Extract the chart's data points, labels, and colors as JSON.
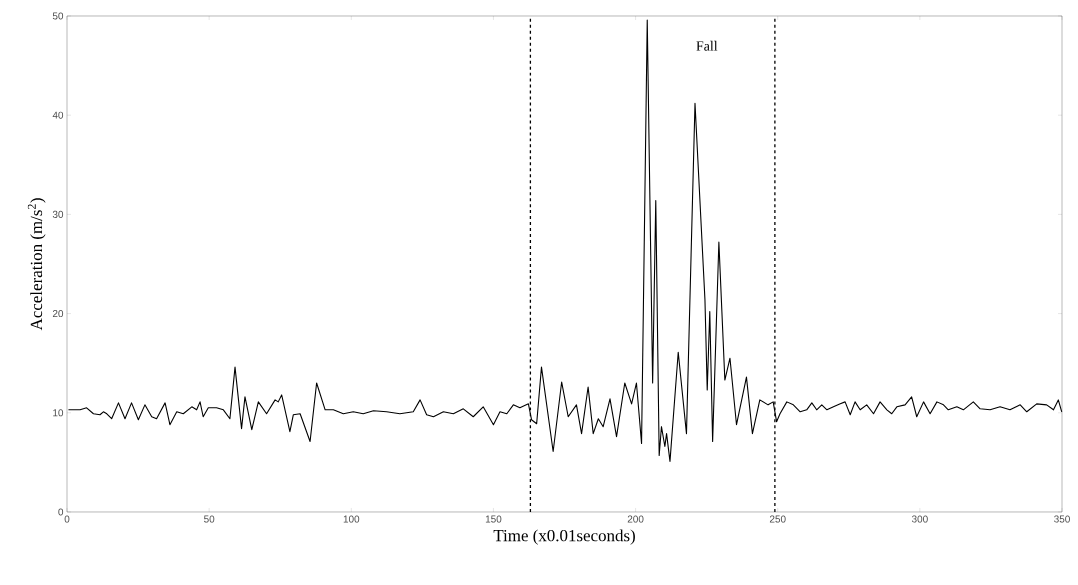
{
  "chart_data": {
    "type": "line",
    "xlabel": "Time (x0.01seconds)",
    "ylabel": "Acceleration (m/s$^{2}$)",
    "xlim": [
      0,
      350
    ],
    "ylim": [
      0,
      50
    ],
    "xticks": [
      0,
      50,
      100,
      150,
      200,
      250,
      300,
      350
    ],
    "yticks": [
      0,
      10,
      20,
      30,
      40,
      50
    ],
    "annotations": [
      "Fall"
    ],
    "ref_lines": [
      {
        "axis": "x",
        "value": 163,
        "color": "#000000",
        "line_style": "dashed"
      },
      {
        "axis": "x",
        "value": 249,
        "color": "#000000",
        "line_style": "dashed"
      }
    ],
    "series": [
      {
        "color": "#000000",
        "x": [
          0.5,
          4.6,
          6.9,
          9.3,
          11.6,
          12.8,
          14.0,
          15.7,
          18.1,
          20.4,
          22.7,
          25.1,
          27.4,
          29.8,
          31.5,
          34.5,
          36.2,
          38.6,
          40.9,
          43.9,
          45.6,
          46.8,
          47.9,
          49.7,
          52.6,
          55.0,
          57.3,
          59.1,
          61.4,
          62.6,
          65.0,
          67.3,
          70.2,
          73.2,
          74.3,
          75.5,
          78.4,
          79.6,
          82.0,
          85.5,
          87.8,
          90.8,
          93.7,
          97.2,
          100.7,
          104.2,
          107.8,
          112.4,
          117.1,
          121.8,
          124.2,
          126.5,
          128.9,
          132.4,
          135.9,
          139.4,
          142.9,
          146.4,
          150.0,
          152.3,
          154.7,
          157.0,
          159.3,
          162.3,
          163.4,
          165.2,
          166.9,
          171.0,
          174.0,
          176.3,
          179.2,
          181.0,
          183.3,
          185.1,
          186.9,
          188.6,
          191.0,
          193.3,
          196.2,
          198.6,
          200.3,
          202.1,
          204.1,
          206.0,
          207.1,
          208.3,
          209.1,
          210.3,
          210.9,
          212.1,
          215.0,
          217.9,
          220.9,
          224.4,
          225.2,
          226.1,
          227.1,
          229.3,
          231.4,
          233.2,
          235.5,
          239.0,
          241.1,
          243.7,
          246.6,
          248.4,
          249.6,
          250.8,
          253.2,
          255.5,
          257.9,
          260.2,
          262.0,
          263.7,
          265.5,
          267.3,
          269.6,
          272.0,
          273.7,
          275.5,
          277.2,
          279.0,
          281.3,
          283.7,
          286.0,
          288.4,
          290.1,
          291.9,
          294.8,
          297.1,
          298.9,
          301.3,
          303.6,
          306.0,
          308.3,
          310.0,
          313.0,
          315.3,
          318.8,
          321.2,
          324.7,
          328.2,
          331.7,
          335.3,
          337.6,
          341.1,
          344.6,
          347.0,
          348.7,
          349.9
        ],
        "values": [
          10.3,
          10.3,
          10.5,
          9.9,
          9.8,
          10.1,
          9.9,
          9.4,
          11.0,
          9.4,
          11.0,
          9.3,
          10.8,
          9.6,
          9.4,
          11.0,
          8.8,
          10.1,
          9.9,
          10.6,
          10.3,
          11.1,
          9.6,
          10.5,
          10.5,
          10.3,
          9.4,
          14.6,
          8.4,
          11.6,
          8.3,
          11.1,
          9.9,
          11.3,
          11.1,
          11.8,
          8.1,
          9.8,
          9.9,
          7.1,
          13.0,
          10.3,
          10.3,
          9.9,
          10.1,
          9.9,
          10.2,
          10.1,
          9.9,
          10.1,
          11.3,
          9.8,
          9.6,
          10.1,
          9.9,
          10.4,
          9.6,
          10.6,
          8.8,
          10.1,
          9.9,
          10.8,
          10.5,
          10.9,
          9.3,
          8.9,
          14.6,
          6.1,
          13.1,
          9.6,
          10.8,
          7.9,
          12.6,
          7.9,
          9.4,
          8.6,
          11.4,
          7.6,
          13.0,
          10.9,
          13.0,
          6.9,
          49.6,
          13.0,
          31.4,
          5.7,
          8.6,
          6.6,
          7.9,
          5.1,
          16.1,
          7.9,
          41.2,
          21.4,
          12.3,
          20.2,
          7.1,
          27.2,
          13.3,
          15.5,
          8.8,
          13.6,
          7.9,
          11.3,
          10.8,
          11.1,
          9.1,
          9.9,
          11.1,
          10.8,
          10.1,
          10.3,
          11.0,
          10.3,
          10.8,
          10.3,
          10.6,
          10.9,
          11.1,
          9.8,
          11.1,
          10.3,
          10.8,
          9.9,
          11.1,
          10.3,
          9.9,
          10.6,
          10.8,
          11.6,
          9.6,
          11.1,
          9.9,
          11.1,
          10.8,
          10.3,
          10.6,
          10.3,
          11.1,
          10.4,
          10.3,
          10.6,
          10.3,
          10.8,
          10.1,
          10.9,
          10.8,
          10.3,
          11.3,
          10.1
        ]
      }
    ]
  }
}
